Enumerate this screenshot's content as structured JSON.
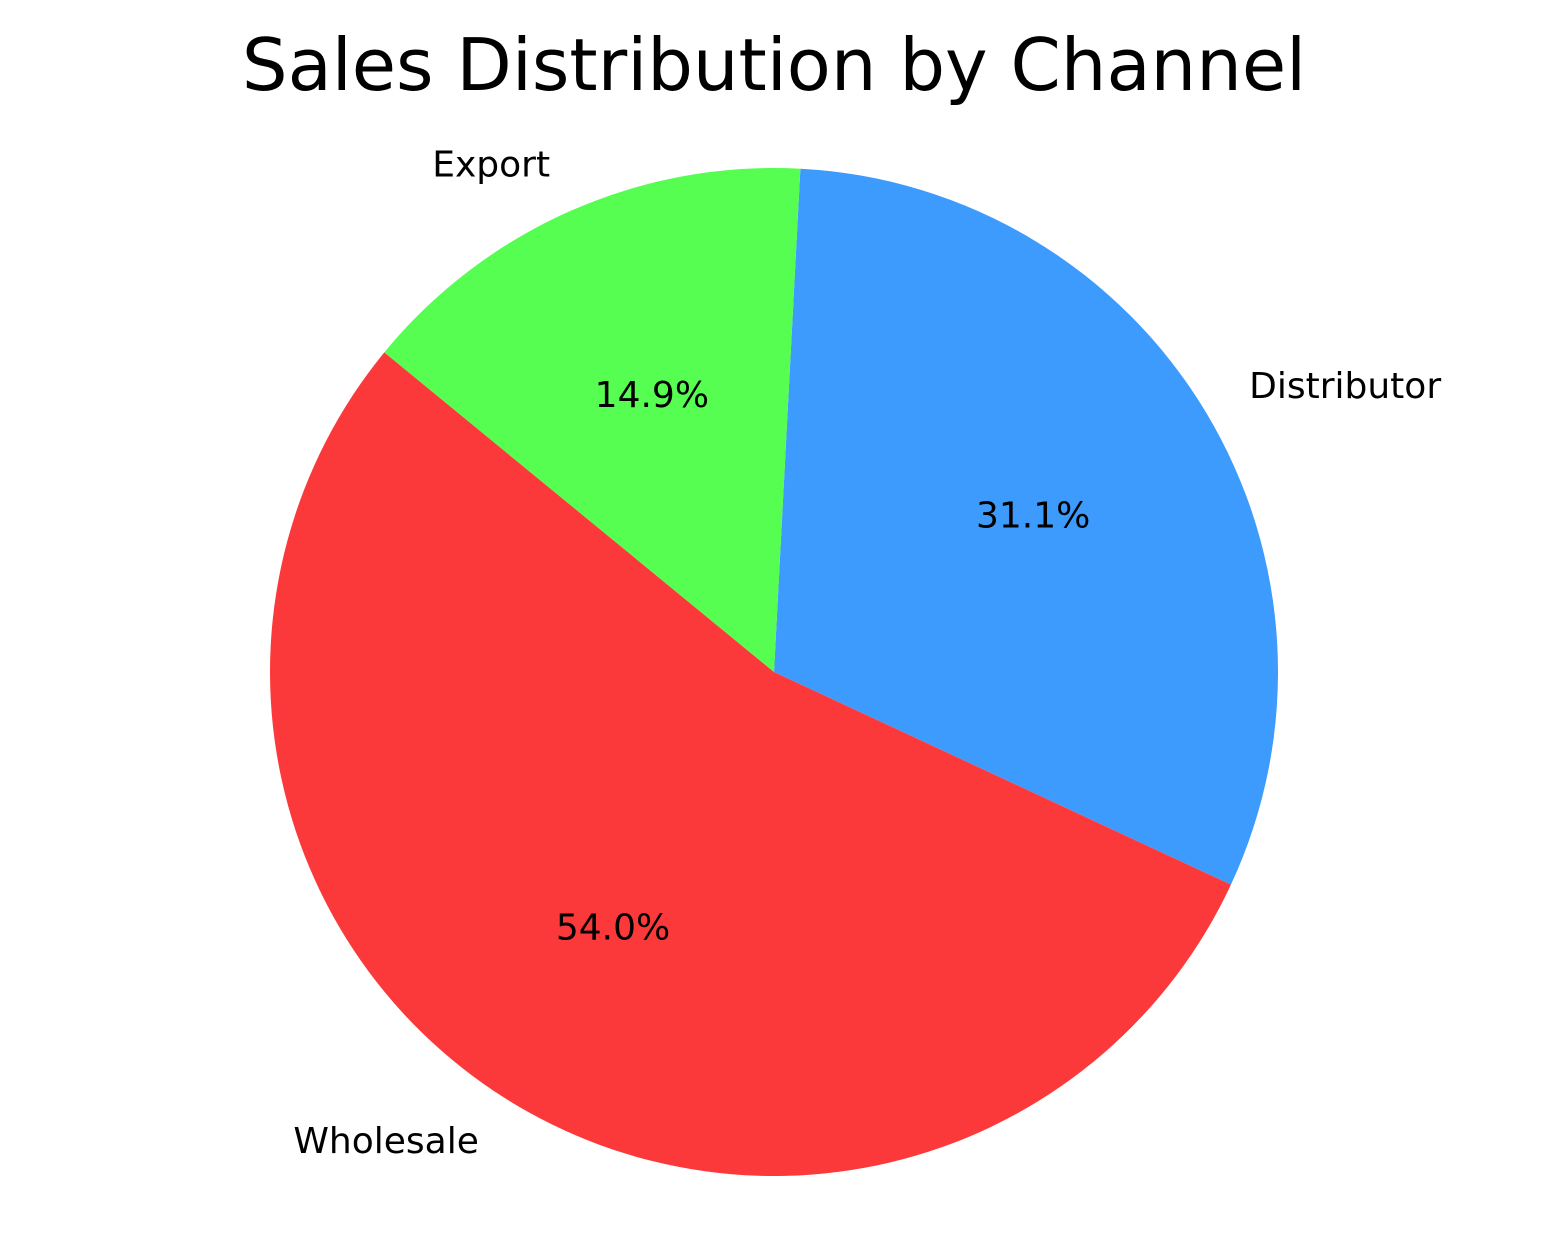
{
  "chart_data": {
    "type": "pie",
    "title": "Sales Distribution by Channel",
    "categories": [
      "Distributor",
      "Wholesale",
      "Export"
    ],
    "values": [
      31.1,
      54.0,
      14.9
    ],
    "value_labels": [
      "31.1%",
      "54.0%",
      "14.9%"
    ],
    "colors": [
      "#3c9bfd",
      "#fc393a",
      "#55fe50"
    ],
    "start_angle_deg": 87,
    "direction": "clockwise",
    "legend": "none"
  }
}
